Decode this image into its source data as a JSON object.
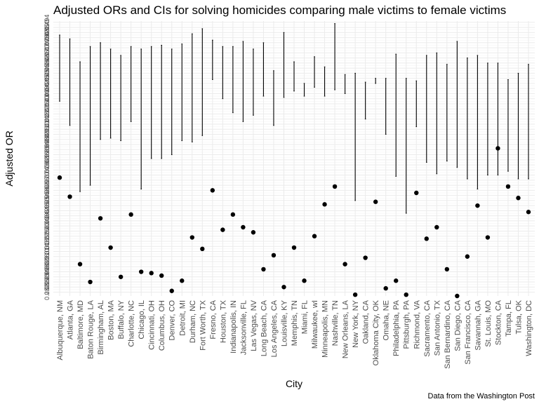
{
  "chart_data": {
    "type": "scatter",
    "title": "Adjusted ORs and CIs for solving homicides comparing male victims to female victims",
    "xlabel": "City",
    "ylabel": "Adjusted OR",
    "caption": "Data from the Washington Post",
    "grid": true,
    "legend": "none",
    "colors": {
      "point": "#000000",
      "errorbar": "#000000",
      "grid_major": "#ebebeb",
      "grid_minor": "#f3f3f3",
      "background": "#ffffff"
    },
    "categories": [
      "Albuquerque, NM",
      "Atlanta, GA",
      "Baltimore, MD",
      "Baton Rouge, LA",
      "Birmingham, AL",
      "Boston, MA",
      "Buffalo, NY",
      "Charlotte, NC",
      "Chicago, IL",
      "Cincinnati, OH",
      "Columbus, OH",
      "Denver, CO",
      "Detroit, MI",
      "Durham, NC",
      "Fort Worth, TX",
      "Fresno, CA",
      "Houston, TX",
      "Indianapolis, IN",
      "Jacksonville, FL",
      "Las Vegas, NV",
      "Long Beach, CA",
      "Los Angeles, CA",
      "Louisville, KY",
      "Memphis, TN",
      "Miami, FL",
      "Milwaukee, wI",
      "Minneapolis, MN",
      "Nashville, TN",
      "New Orleans, LA",
      "New York, NY",
      "Oakland, CA",
      "Oklahoma City, OK",
      "Omaha, NE",
      "Philadelphia, PA",
      "Pittsburgh, PA",
      "Richmond, VA",
      "Sacramento, CA",
      "San Antonio, TX",
      "San Bernardino, CA",
      "San Diego, CA",
      "San Francisco, CA",
      "Savannah, GA",
      "St. Louis, MO",
      "Stockton, CA",
      "Tampa, FL",
      "Tulsa, OK",
      "Washington, DC"
    ],
    "series": [
      {
        "or": [
          0.372,
          0.357,
          0.304,
          0.29,
          0.34,
          0.317,
          0.294,
          0.343,
          0.298,
          0.297,
          0.295,
          0.283,
          0.291,
          0.325,
          0.316,
          0.362,
          0.331,
          0.343,
          0.333,
          0.329,
          0.3,
          0.311,
          0.286,
          0.317,
          0.291,
          0.326,
          0.351,
          0.365,
          0.304,
          0.28,
          0.309,
          0.353,
          0.285,
          0.291,
          0.28,
          0.36,
          0.324,
          0.333,
          0.3,
          0.279,
          0.31,
          0.35,
          0.325,
          0.395,
          0.365,
          0.356,
          0.345
        ],
        "lower": [
          0.432,
          0.413,
          0.361,
          0.366,
          0.402,
          0.403,
          0.401,
          0.416,
          0.363,
          0.387,
          0.387,
          0.39,
          0.401,
          0.4,
          0.405,
          0.449,
          0.434,
          0.423,
          0.416,
          0.421,
          0.436,
          0.413,
          0.435,
          0.44,
          0.436,
          0.443,
          0.436,
          0.441,
          0.438,
          0.354,
          0.418,
          0.446,
          0.406,
          0.373,
          0.344,
          0.412,
          0.384,
          0.375,
          0.385,
          0.38,
          0.371,
          0.363,
          0.374,
          0.374,
          0.377,
          0.371,
          0.371
        ],
        "upper": [
          0.484,
          0.481,
          0.463,
          0.475,
          0.478,
          0.473,
          0.468,
          0.475,
          0.473,
          0.475,
          0.476,
          0.473,
          0.477,
          0.485,
          0.489,
          0.48,
          0.475,
          0.475,
          0.479,
          0.473,
          0.478,
          0.456,
          0.486,
          0.463,
          0.446,
          0.467,
          0.459,
          0.493,
          0.453,
          0.454,
          0.447,
          0.45,
          0.45,
          0.469,
          0.45,
          0.448,
          0.468,
          0.47,
          0.461,
          0.479,
          0.466,
          0.468,
          0.462,
          0.462,
          0.449,
          0.454,
          0.461
        ]
      }
    ],
    "y_ticks": [
      "0.282",
      "0.286",
      "0.290",
      "0.294",
      "0.298",
      "0.302",
      "0.306",
      "0.310",
      "0.314",
      "0.318",
      "0.322",
      "0.326",
      "0.330",
      "0.334",
      "0.338",
      "0.342",
      "0.346",
      "0.350",
      "0.354",
      "0.358",
      "0.362",
      "0.366",
      "0.370",
      "0.374",
      "0.378",
      "0.382",
      "0.386",
      "0.390",
      "0.394",
      "0.398",
      "0.402",
      "0.406",
      "0.410",
      "0.414",
      "0.418",
      "0.422",
      "0.426",
      "0.430",
      "0.434",
      "0.438",
      "0.442",
      "0.446",
      "0.450",
      "0.454",
      "0.458",
      "0.462",
      "0.466",
      "0.470",
      "0.474",
      "0.478",
      "0.482",
      "0.486",
      "0.490",
      "0.494"
    ],
    "ylim": [
      0.279,
      0.495
    ]
  }
}
